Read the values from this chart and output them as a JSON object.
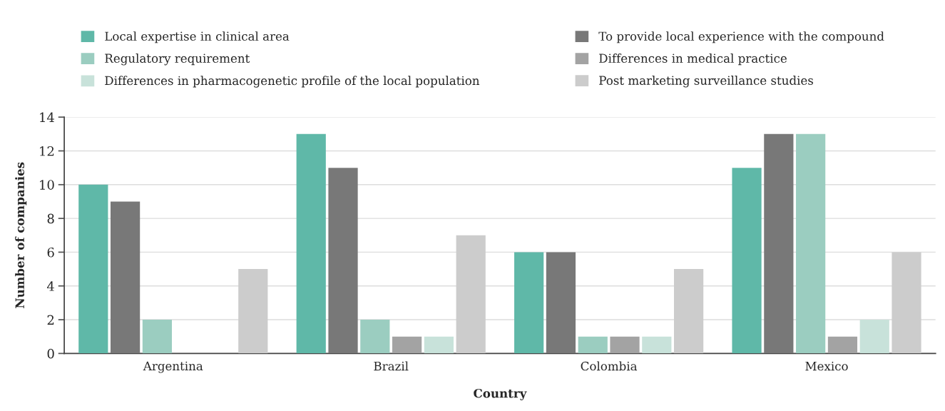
{
  "chart_data": {
    "type": "bar",
    "xlabel": "Country",
    "ylabel": "Number of companies",
    "categories": [
      "Argentina",
      "Brazil",
      "Colombia",
      "Mexico"
    ],
    "series": [
      {
        "name": "Local expertise in clinical area",
        "color": "#5fb8a8",
        "values": [
          10,
          13,
          6,
          11
        ]
      },
      {
        "name": "To provide local experience with the compound",
        "color": "#787878",
        "values": [
          9,
          11,
          6,
          13
        ]
      },
      {
        "name": "Regulatory requirement",
        "color": "#9bcdc0",
        "values": [
          2,
          2,
          1,
          13
        ]
      },
      {
        "name": "Differences in medical practice",
        "color": "#a3a3a3",
        "values": [
          null,
          1,
          1,
          1
        ]
      },
      {
        "name": "Differences in pharmacogenetic profile of the local population",
        "color": "#c8e2da",
        "values": [
          null,
          1,
          1,
          2
        ]
      },
      {
        "name": "Post marketing surveillance studies",
        "color": "#cccccc",
        "values": [
          5,
          7,
          5,
          6
        ]
      }
    ],
    "ylim": [
      0,
      14
    ],
    "yticks": [
      0,
      2,
      4,
      6,
      8,
      10,
      12,
      14
    ],
    "grid": "y",
    "legend": "top"
  }
}
